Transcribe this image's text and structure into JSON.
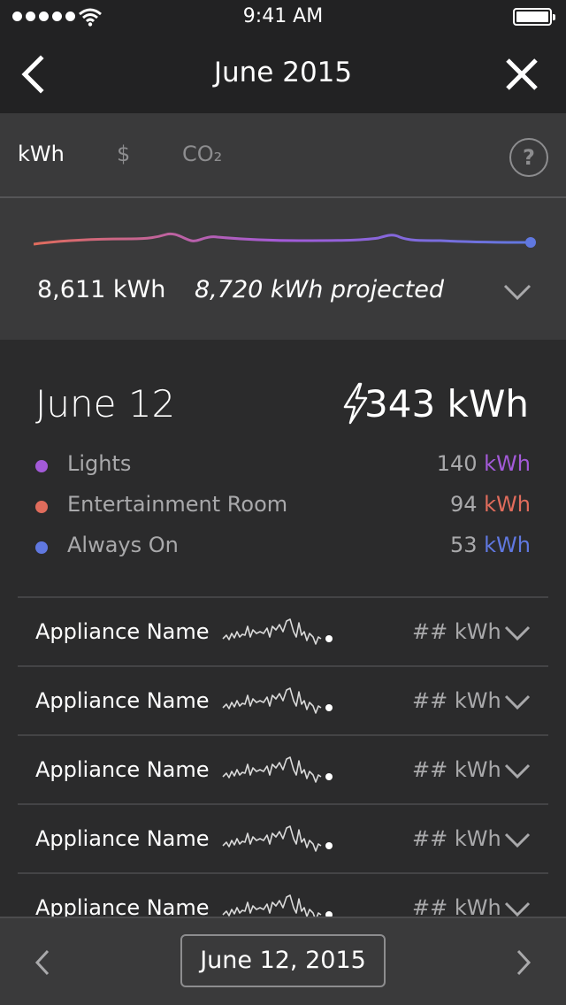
{
  "status_bar": {
    "time": "9:41 AM",
    "signal_icon": "signal-dots-icon",
    "wifi_icon": "wifi-icon",
    "battery_icon": "battery-icon",
    "battery_level": 1.0
  },
  "nav": {
    "title": "June 2015",
    "back_icon": "chevron-left-icon",
    "close_icon": "close-icon"
  },
  "unit_tabs": [
    {
      "label": "kWh",
      "active": true
    },
    {
      "label": "$",
      "active": false
    },
    {
      "label": "CO₂",
      "active": false
    }
  ],
  "help_label": "?",
  "summary": {
    "total": "8,611 kWh",
    "projected": "8,720 kWh projected",
    "trend_gradient": [
      "#e06c5c",
      "#a35ad8",
      "#6078e0"
    ],
    "expand_icon": "chevron-down-icon"
  },
  "day": {
    "date": "June 12",
    "total": "343 kWh",
    "icon": "lightning-bolt-icon",
    "breakdown": [
      {
        "name": "Lights",
        "value": "140",
        "unit": "kWh",
        "color": "#a35ad8"
      },
      {
        "name": "Entertainment Room",
        "value": "94",
        "unit": "kWh",
        "color": "#e06c5c"
      },
      {
        "name": "Always On",
        "value": "53",
        "unit": "kWh",
        "color": "#6078e0"
      }
    ]
  },
  "appliances": [
    {
      "name": "Appliance Name",
      "value": "## kWh"
    },
    {
      "name": "Appliance Name",
      "value": "## kWh"
    },
    {
      "name": "Appliance Name",
      "value": "## kWh"
    },
    {
      "name": "Appliance Name",
      "value": "## kWh"
    },
    {
      "name": "Appliance Name",
      "value": "## kWh"
    }
  ],
  "footer": {
    "date": "June 12, 2015",
    "prev_icon": "chevron-left-icon",
    "next_icon": "chevron-right-icon"
  }
}
